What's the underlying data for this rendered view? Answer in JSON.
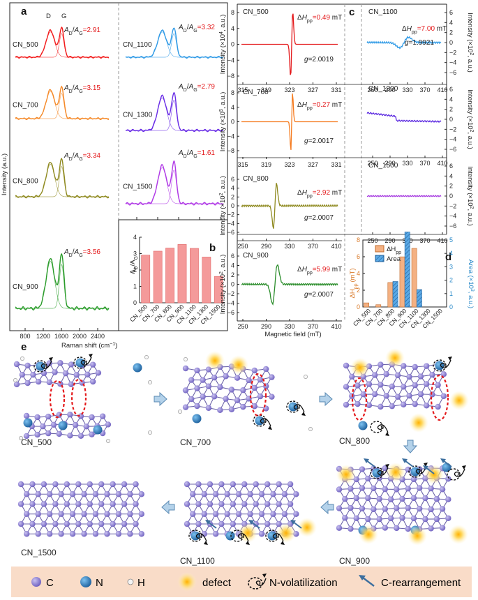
{
  "panels": {
    "a": "a",
    "b": "b",
    "c": "c",
    "d": "d",
    "e": "e"
  },
  "raman": {
    "peaks": {
      "d": "D",
      "g": "G"
    },
    "ratio_label": "A",
    "ratio_sub_d": "D",
    "ratio_sub_g": "G",
    "ylabel": "Intensity (a.u.)",
    "xlabel": "Raman shift (cm",
    "xlabel_sup": "−1",
    "xlabel_tail": ")",
    "xticks": [
      "800",
      "1200",
      "1600",
      "2000",
      "2400"
    ],
    "spectra": [
      {
        "name": "CN_500",
        "ratio": "=2.91",
        "color": "#f21c1c"
      },
      {
        "name": "CN_700",
        "ratio": "=3.15",
        "color": "#f58a2a"
      },
      {
        "name": "CN_800",
        "ratio": "=3.34",
        "color": "#8f8a20"
      },
      {
        "name": "CN_900",
        "ratio": "=3.56",
        "color": "#2a9c2a"
      },
      {
        "name": "CN_1100",
        "ratio": "=3.32",
        "color": "#2f9ae6"
      },
      {
        "name": "CN_1300",
        "ratio": "=2.79",
        "color": "#6a2ee6"
      },
      {
        "name": "CN_1500",
        "ratio": "=1.61",
        "color": "#b03ae6"
      }
    ]
  },
  "chart_data": [
    {
      "type": "bar",
      "panel": "b",
      "categories": [
        "CN_500",
        "CN_700",
        "CN_800",
        "CN_900",
        "CN_1100",
        "CN_1300",
        "CN_1500"
      ],
      "values": [
        2.91,
        3.15,
        3.34,
        3.56,
        3.32,
        2.79,
        1.61
      ],
      "ylabel": "A",
      "ylabel_sub": "D",
      "ylabel_den": "/A",
      "ylabel_den_sub": "G",
      "ylim": [
        0,
        4
      ],
      "yticks": [
        "0",
        "1",
        "2",
        "3",
        "4"
      ],
      "color": "#f49a9a"
    },
    {
      "type": "bar",
      "panel": "d",
      "categories": [
        "CN_500",
        "CN_700",
        "CN_800",
        "CN_900",
        "CN_1100",
        "CN_1300",
        "CN_1500"
      ],
      "series": [
        {
          "name": "ΔH",
          "name_sub": "pp",
          "values": [
            0.49,
            0.27,
            2.92,
            5.99,
            7.0,
            0,
            0
          ],
          "color": "#f4b183"
        },
        {
          "name": "Area",
          "values": [
            0,
            0,
            1.9,
            5.6,
            1.3,
            0,
            0
          ],
          "color": "#5aa9e6"
        }
      ],
      "ylabel_left": "ΔH",
      "ylabel_left_sub": "pp",
      "ylabel_left_unit": "(mT)",
      "ylim_left": [
        0,
        8
      ],
      "yticks_left": [
        "0",
        "2",
        "4",
        "6",
        "8"
      ],
      "ylabel_right": "Area (×10",
      "ylabel_right_sup": "3",
      "ylabel_right_tail": ", a.u.)",
      "ylim_right": [
        0,
        5
      ],
      "yticks_right": [
        "0",
        "1",
        "2",
        "3",
        "4",
        "5"
      ]
    }
  ],
  "epr": {
    "xlabel": "Magnetic field (mT)",
    "ylabel_left": "Intensity (×10",
    "ylabel_tail": ", a.u.)",
    "dH_label": "ΔH",
    "dH_sub": "pp",
    "unit": "mT",
    "g_label": "g",
    "traces": [
      {
        "name": "CN_500",
        "dh": "=0.49",
        "g": "=2.0019",
        "exp": "4",
        "color": "#e41a1c",
        "xticks": [
          "315",
          "319",
          "323",
          "327",
          "331"
        ],
        "yticks": [
          "8",
          "4",
          "0",
          "−4",
          "−8"
        ]
      },
      {
        "name": "CN_700",
        "dh": "=0.27",
        "g": "=2.0017",
        "exp": "5",
        "color": "#f57c21",
        "xticks": [
          "315",
          "319",
          "323",
          "327",
          "331"
        ],
        "yticks": [
          "8",
          "4",
          "0",
          "−4",
          "−8"
        ]
      },
      {
        "name": "CN_800",
        "dh": "=2.92",
        "g": "=2.0007",
        "exp": "2",
        "color": "#8f8a20",
        "xticks": [
          "250",
          "290",
          "330",
          "370",
          "410"
        ],
        "yticks": [
          "6",
          "4",
          "2",
          "0",
          "−2",
          "−4",
          "−6"
        ]
      },
      {
        "name": "CN_900",
        "dh": "=5.99",
        "g": "=2.0007",
        "exp": "2",
        "color": "#2a8c2a",
        "xticks": [
          "250",
          "290",
          "330",
          "370",
          "410"
        ],
        "yticks": [
          "6",
          "4",
          "2",
          "0",
          "−2",
          "−4",
          "−6"
        ]
      },
      {
        "name": "CN_1100",
        "dh": "=7.00",
        "g": "=1.9921",
        "exp": "2",
        "color": "#2f9ae6",
        "xticks": [
          "250",
          "290",
          "330",
          "370",
          "410"
        ],
        "yticks": [
          "6",
          "4",
          "2",
          "0",
          "−2",
          "−4",
          "−6"
        ]
      },
      {
        "name": "CN_1300",
        "color": "#5a28e0",
        "xticks": [
          "250",
          "290",
          "330",
          "370",
          "410"
        ],
        "yticks": [
          "6",
          "4",
          "2",
          "0",
          "−2",
          "−4",
          "−6"
        ]
      },
      {
        "name": "CN_1500",
        "color": "#a63ae0",
        "xticks": [
          "250",
          "290",
          "330",
          "370",
          "410"
        ],
        "yticks": [
          "6",
          "4",
          "2",
          "0",
          "−2",
          "−4",
          "−6"
        ]
      }
    ]
  },
  "scheme": {
    "samples": [
      "CN_500",
      "CN_700",
      "CN_800",
      "CN_900",
      "CN_1100",
      "CN_1500"
    ],
    "legend": {
      "c": "C",
      "n": "N",
      "h": "H",
      "defect": "defect",
      "nvol": "N-volatilization",
      "crear": "C-rearrangement"
    },
    "colors": {
      "carbon": "#8c7fd0",
      "nitrogen": "#2b86c9",
      "defect": "#ffd34d",
      "arrow": "#3d6f9e",
      "legend_bg": "#f9dcc8"
    }
  }
}
